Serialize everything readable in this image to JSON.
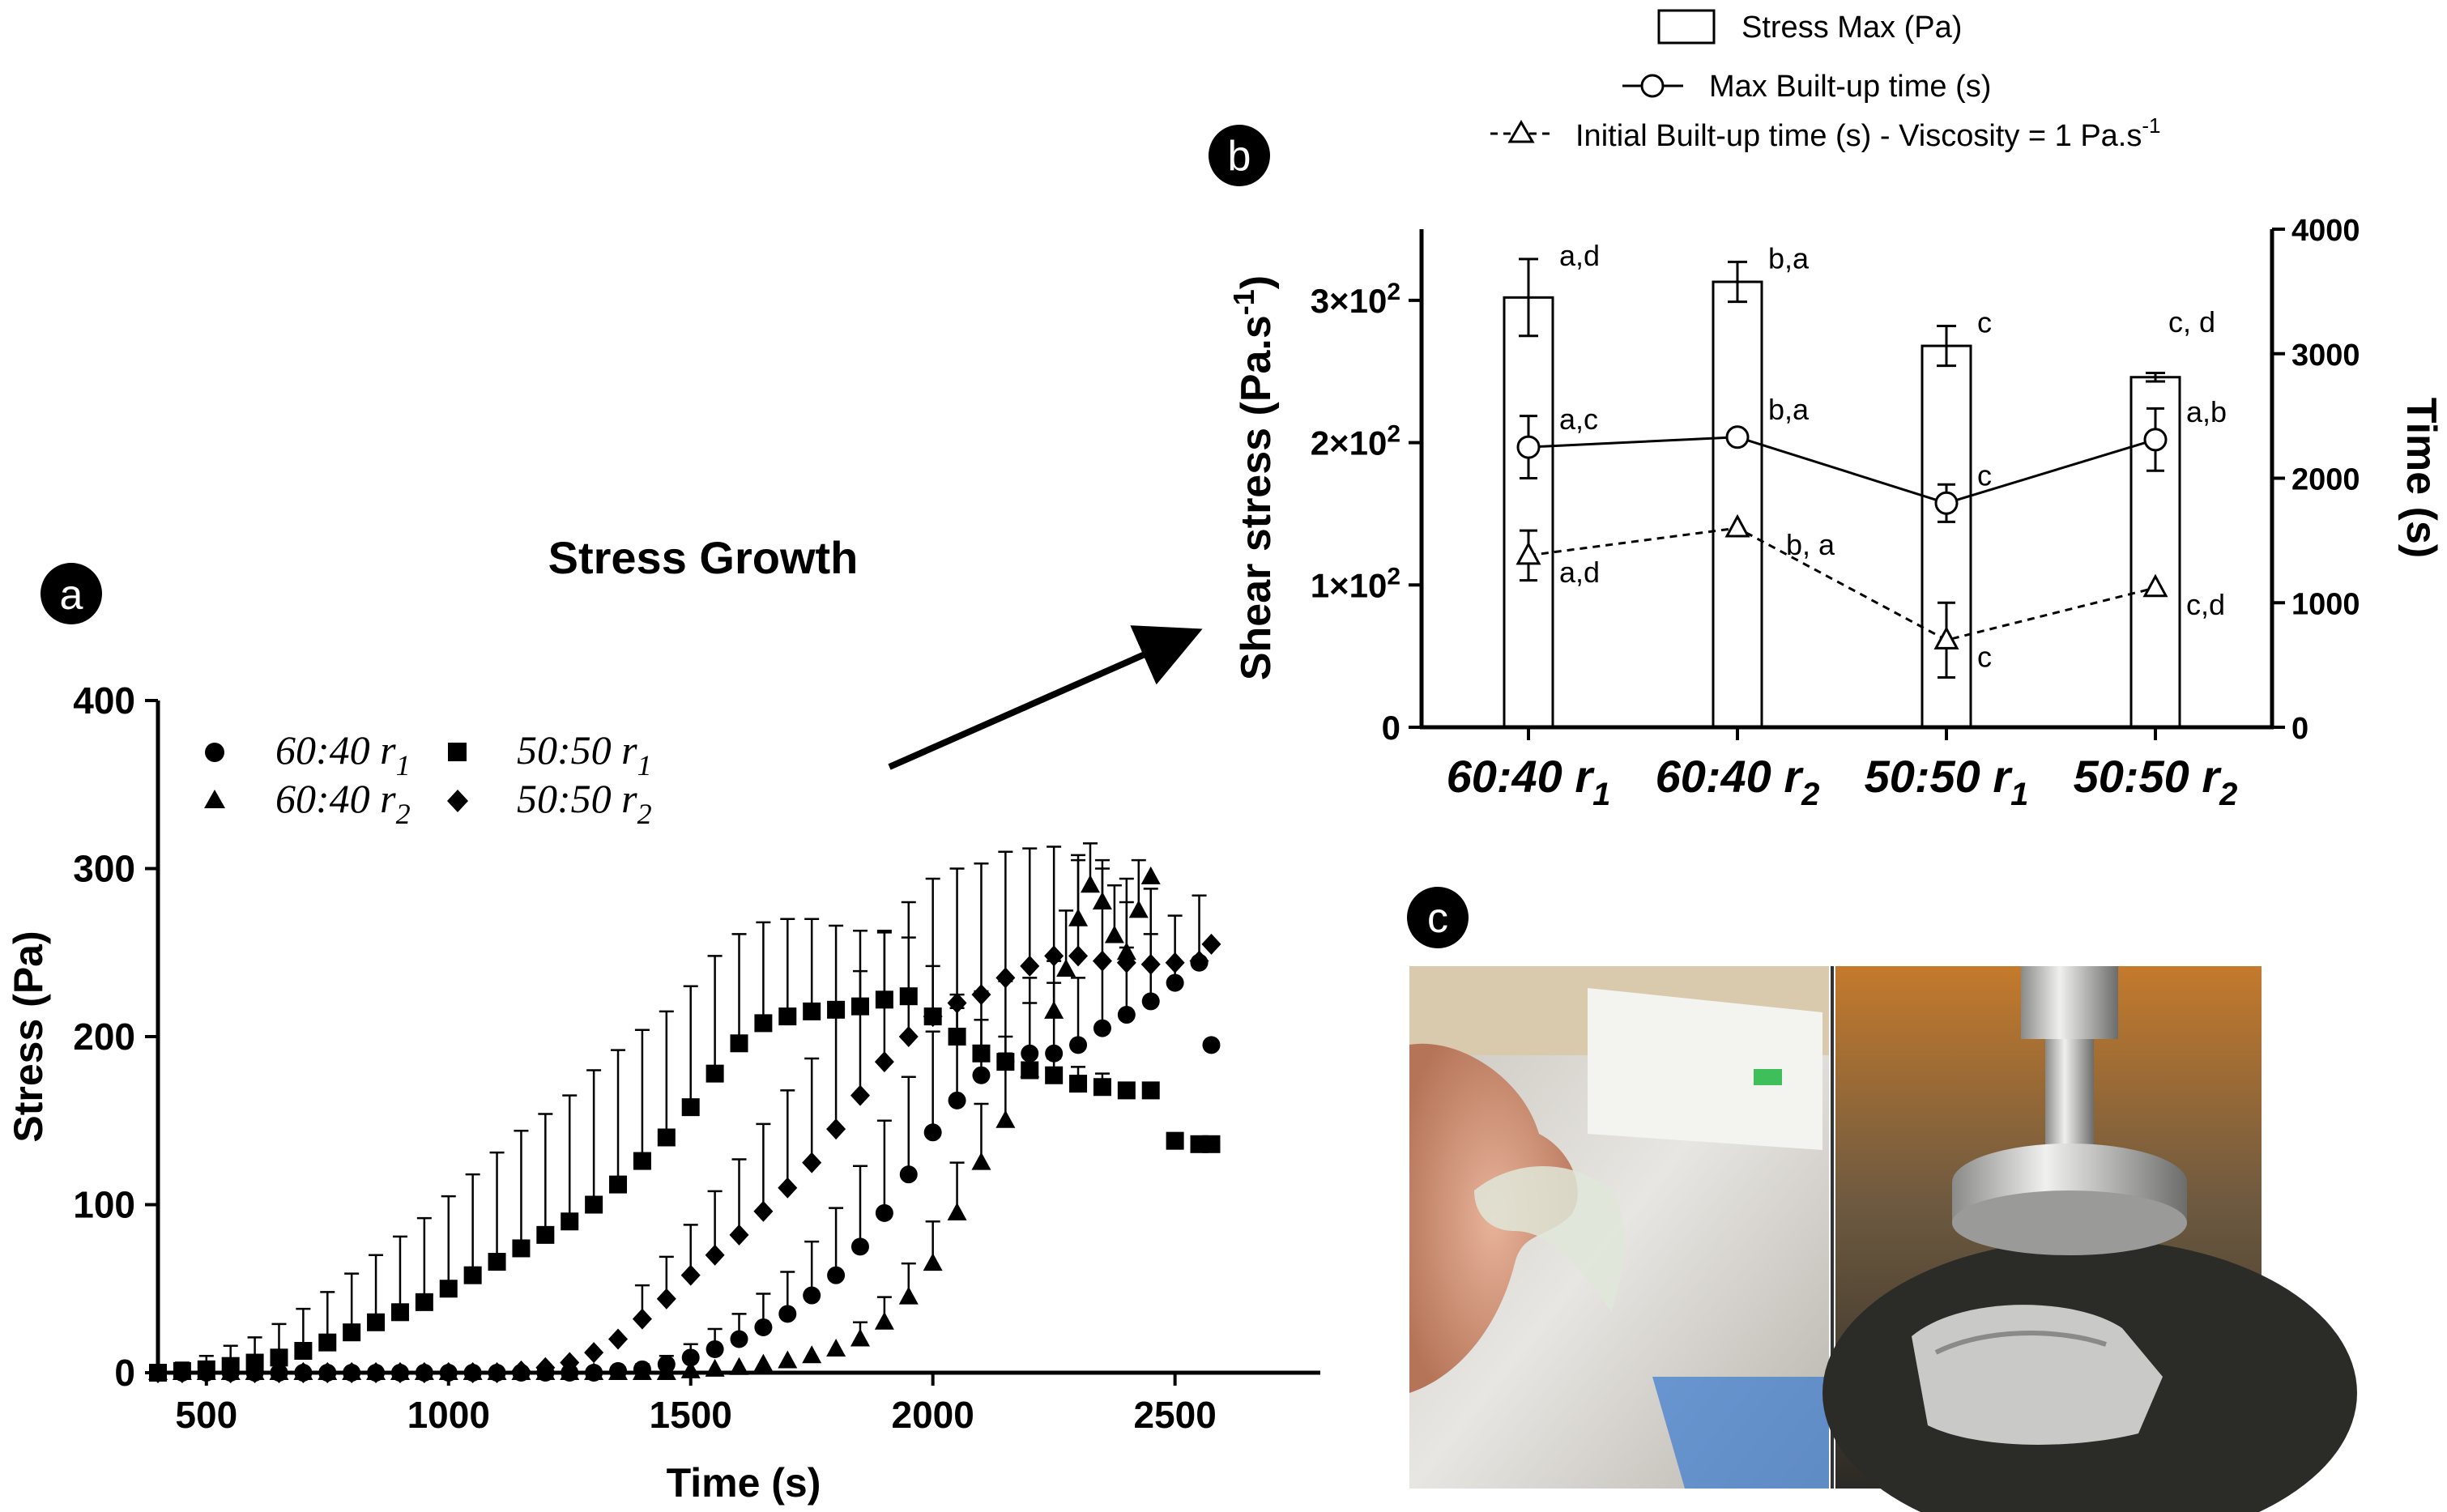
{
  "panel_a": {
    "badge": "a",
    "heading": "Stress Growth"
  },
  "panel_b": {
    "badge": "b"
  },
  "panel_c": {
    "badge": "c"
  },
  "legend_b": {
    "bar": "Stress Max (Pa)",
    "max": "Max Built-up time (s)",
    "initial_main": "Initial Built-up time (s) - Viscosity = 1 Pa.s",
    "initial_sup": "-1"
  },
  "colors": {
    "ink": "#000000",
    "bar_fill": "#ffffff"
  },
  "chart_data": [
    {
      "id": "a",
      "type": "scatter",
      "title": "Stress Growth",
      "xlabel": "Time (s)",
      "ylabel": "Stress (Pa)",
      "xlim": [
        400,
        2800
      ],
      "ylim": [
        0,
        400
      ],
      "xticks": [
        500,
        1000,
        1500,
        2000,
        2500
      ],
      "yticks": [
        0,
        100,
        200,
        300,
        400
      ],
      "legend_position": "top-left",
      "series": [
        {
          "name_main": "60:40 r",
          "name_sub": "1",
          "marker": "circle",
          "x": [
            400,
            450,
            500,
            550,
            600,
            650,
            700,
            750,
            800,
            850,
            900,
            950,
            1000,
            1050,
            1100,
            1150,
            1200,
            1250,
            1300,
            1350,
            1400,
            1450,
            1500,
            1550,
            1600,
            1650,
            1700,
            1750,
            1800,
            1850,
            1900,
            1950,
            2000,
            2050,
            2100,
            2150,
            2200,
            2250,
            2300,
            2350,
            2400,
            2450,
            2500,
            2550,
            2575
          ],
          "y": [
            0,
            0,
            0,
            0,
            0,
            0,
            0,
            0,
            0,
            0,
            0,
            0,
            0,
            0,
            0,
            0,
            0,
            0,
            0,
            1,
            2,
            5,
            9,
            14,
            20,
            27,
            35,
            46,
            58,
            75,
            95,
            118,
            143,
            162,
            177,
            185,
            190,
            190,
            195,
            205,
            213,
            221,
            232,
            244,
            195
          ],
          "err": [
            0,
            0,
            0,
            0,
            0,
            0,
            0,
            0,
            0,
            0,
            0,
            0,
            0,
            0,
            0,
            0,
            0,
            0,
            0,
            2,
            3,
            5,
            8,
            12,
            15,
            20,
            25,
            32,
            40,
            48,
            55,
            58,
            60,
            55,
            50,
            48,
            45,
            42,
            40,
            40,
            40,
            40,
            40,
            40,
            0
          ]
        },
        {
          "name_main": "60:40 r",
          "name_sub": "2",
          "marker": "triangle",
          "x": [
            400,
            450,
            500,
            550,
            600,
            650,
            700,
            750,
            800,
            850,
            900,
            950,
            1000,
            1050,
            1100,
            1150,
            1200,
            1250,
            1300,
            1350,
            1400,
            1450,
            1500,
            1550,
            1600,
            1650,
            1700,
            1750,
            1800,
            1850,
            1900,
            1950,
            2000,
            2050,
            2100,
            2150,
            2200,
            2250,
            2275,
            2300,
            2325,
            2350,
            2375,
            2400,
            2425,
            2450
          ],
          "y": [
            0,
            0,
            0,
            0,
            0,
            0,
            0,
            0,
            0,
            0,
            0,
            0,
            0,
            0,
            0,
            0,
            0,
            0,
            0,
            0,
            0,
            0,
            1,
            2,
            3,
            5,
            7,
            10,
            14,
            20,
            30,
            45,
            65,
            95,
            125,
            150,
            180,
            215,
            240,
            270,
            290,
            280,
            260,
            250,
            275,
            295
          ],
          "err": [
            0,
            0,
            0,
            0,
            0,
            0,
            0,
            0,
            0,
            0,
            0,
            0,
            0,
            0,
            0,
            0,
            0,
            0,
            0,
            0,
            0,
            0,
            0,
            0,
            0,
            0,
            0,
            0,
            0,
            10,
            15,
            20,
            25,
            30,
            35,
            40,
            40,
            30,
            35,
            35,
            25,
            25,
            30,
            30,
            30,
            0
          ]
        },
        {
          "name_main": "50:50 r",
          "name_sub": "1",
          "marker": "square",
          "x": [
            400,
            450,
            500,
            550,
            600,
            650,
            700,
            750,
            800,
            850,
            900,
            950,
            1000,
            1050,
            1100,
            1150,
            1200,
            1250,
            1300,
            1350,
            1400,
            1450,
            1500,
            1550,
            1600,
            1650,
            1700,
            1750,
            1800,
            1850,
            1900,
            1950,
            2000,
            2050,
            2100,
            2150,
            2200,
            2250,
            2300,
            2350,
            2400,
            2450,
            2500,
            2550,
            2575
          ],
          "y": [
            0,
            1,
            2,
            4,
            6,
            9,
            13,
            18,
            24,
            30,
            36,
            42,
            50,
            58,
            66,
            74,
            82,
            90,
            100,
            112,
            126,
            140,
            158,
            178,
            196,
            208,
            212,
            215,
            216,
            218,
            222,
            224,
            212,
            200,
            190,
            185,
            180,
            177,
            172,
            170,
            168,
            168,
            138,
            136,
            136
          ],
          "err": [
            3,
            5,
            8,
            12,
            15,
            20,
            25,
            30,
            35,
            40,
            45,
            50,
            55,
            60,
            65,
            70,
            72,
            75,
            80,
            80,
            78,
            75,
            72,
            70,
            65,
            60,
            58,
            55,
            50,
            45,
            40,
            35,
            30,
            25,
            20,
            15,
            12,
            10,
            10,
            8,
            0,
            0,
            0,
            0,
            0
          ]
        },
        {
          "name_main": "50:50 r",
          "name_sub": "2",
          "marker": "diamond",
          "x": [
            400,
            450,
            500,
            550,
            600,
            650,
            700,
            750,
            800,
            850,
            900,
            950,
            1000,
            1050,
            1100,
            1150,
            1200,
            1250,
            1300,
            1350,
            1400,
            1450,
            1500,
            1550,
            1600,
            1650,
            1700,
            1750,
            1800,
            1850,
            1900,
            1950,
            2000,
            2050,
            2100,
            2150,
            2200,
            2250,
            2300,
            2350,
            2400,
            2450,
            2500,
            2550,
            2575
          ],
          "y": [
            0,
            0,
            0,
            0,
            0,
            0,
            0,
            0,
            0,
            0,
            0,
            0,
            0,
            0,
            0,
            1,
            3,
            6,
            12,
            20,
            32,
            44,
            58,
            70,
            82,
            96,
            110,
            125,
            145,
            165,
            185,
            200,
            212,
            220,
            225,
            235,
            242,
            248,
            248,
            245,
            244,
            243,
            244,
            245,
            255
          ],
          "err": [
            0,
            0,
            0,
            0,
            0,
            0,
            0,
            0,
            0,
            0,
            0,
            0,
            0,
            0,
            0,
            0,
            0,
            0,
            0,
            0,
            20,
            25,
            30,
            38,
            45,
            52,
            58,
            62,
            68,
            74,
            78,
            80,
            82,
            80,
            78,
            75,
            70,
            65,
            60,
            55,
            50,
            45,
            0,
            0,
            0
          ]
        }
      ]
    },
    {
      "id": "b",
      "type": "bar",
      "ylabel_main": "Shear stress (Pa.s",
      "ylabel_sup": "-1",
      "ylabel_tail": ")",
      "y2label": "Time (s)",
      "ylim": [
        0,
        350
      ],
      "y2lim": [
        0,
        4000
      ],
      "yticks": [
        {
          "v": 0,
          "label": "0"
        },
        {
          "v": 100,
          "base": "1×10",
          "exp": "2"
        },
        {
          "v": 200,
          "base": "2×10",
          "exp": "2"
        },
        {
          "v": 300,
          "base": "3×10",
          "exp": "2"
        }
      ],
      "y2ticks": [
        0,
        1000,
        2000,
        3000,
        4000
      ],
      "categories": [
        {
          "main": "60:40 r",
          "sub": "1"
        },
        {
          "main": "60:40 r",
          "sub": "2"
        },
        {
          "main": "50:50 r",
          "sub": "1"
        },
        {
          "main": "50:50 r",
          "sub": "2"
        }
      ],
      "bars": {
        "name": "Stress Max (Pa)",
        "values": [
          302,
          313,
          268,
          246
        ],
        "err": [
          27,
          14,
          14,
          3
        ],
        "letters": [
          "a,d",
          "b,a",
          "c",
          "c, d"
        ]
      },
      "max_time": {
        "name": "Max Built-up time (s)",
        "values": [
          2250,
          2330,
          1800,
          2310
        ],
        "err": [
          250,
          0,
          150,
          250
        ],
        "letters": [
          "a,c",
          "b,a",
          "c",
          "a,b"
        ]
      },
      "initial_time": {
        "name": "Initial Built-up time (s) - Viscosity = 1 Pa.s-1",
        "values": [
          1380,
          1600,
          700,
          1120
        ],
        "err": [
          200,
          0,
          300,
          0
        ],
        "letters": [
          "a,d",
          "b, a",
          "c",
          "c,d"
        ]
      }
    }
  ]
}
